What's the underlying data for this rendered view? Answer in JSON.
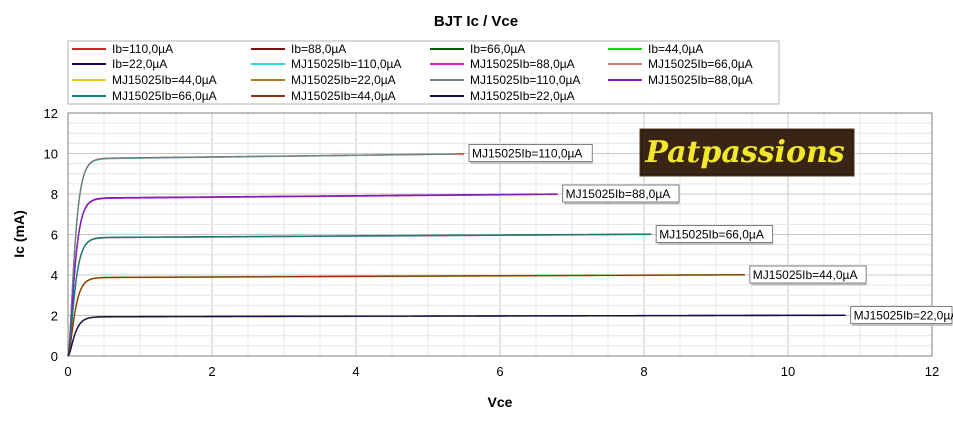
{
  "chart_data": {
    "type": "line",
    "title": "BJT Ic / Vce",
    "xlabel": "Vce",
    "ylabel": "Ic (mA)",
    "xlim": [
      0,
      12
    ],
    "ylim": [
      0,
      12
    ],
    "xticks": [
      "0",
      "2",
      "4",
      "6",
      "8",
      "10",
      "12"
    ],
    "yticks": [
      "0",
      "2",
      "4",
      "6",
      "8",
      "10",
      "12"
    ],
    "grid": true,
    "legend_position": "top",
    "series": [
      {
        "name": "Ib=110,0µA",
        "color": "#d42020",
        "sat": 9.75,
        "end_x": 5.5,
        "end_y": 9.98
      },
      {
        "name": "Ib=88,0µA",
        "color": "#7a1010",
        "sat": 7.8,
        "end_x": 6.8,
        "end_y": 8.0
      },
      {
        "name": "Ib=66,0µA",
        "color": "#0a5a0a",
        "sat": 5.85,
        "end_x": 8.1,
        "end_y": 6.02
      },
      {
        "name": "Ib=44,0µA",
        "color": "#20d020",
        "sat": 3.88,
        "end_x": 9.4,
        "end_y": 4.02
      },
      {
        "name": "Ib=22,0µA",
        "color": "#0a0a60",
        "sat": 1.93,
        "end_x": 10.8,
        "end_y": 2.02
      },
      {
        "name": "MJ15025Ib=110,0µA",
        "color": "#30d8d8",
        "sat": 9.72,
        "end_x": 5.4,
        "end_y": 9.97
      },
      {
        "name": "MJ15025Ib=88,0µA",
        "color": "#d020d0",
        "sat": 7.77,
        "end_x": 6.8,
        "end_y": 7.98
      },
      {
        "name": "MJ15025Ib=66,0µA",
        "color": "#d08080",
        "sat": 5.83,
        "end_x": 8.1,
        "end_y": 6.0
      },
      {
        "name": "MJ15025Ib=44,0µA",
        "color": "#e8d020",
        "sat": 3.86,
        "end_x": 9.4,
        "end_y": 4.0
      },
      {
        "name": "MJ15025Ib=22,0µA",
        "color": "#a88020",
        "sat": 1.92,
        "end_x": 10.8,
        "end_y": 2.0
      },
      {
        "name": "MJ15025Ib=110,0µA",
        "color": "#708080",
        "sat": 9.74,
        "end_x": 5.4,
        "end_y": 9.97
      },
      {
        "name": "MJ15025Ib=88,0µA",
        "color": "#8020c0",
        "sat": 7.79,
        "end_x": 6.8,
        "end_y": 7.99
      },
      {
        "name": "MJ15025Ib=66,0µA",
        "color": "#108080",
        "sat": 5.84,
        "end_x": 8.1,
        "end_y": 6.01
      },
      {
        "name": "MJ15025Ib=44,0µA",
        "color": "#903010",
        "sat": 3.87,
        "end_x": 9.4,
        "end_y": 4.01
      },
      {
        "name": "MJ15025Ib=22,0µA",
        "color": "#101050",
        "sat": 1.94,
        "end_x": 10.8,
        "end_y": 2.01
      }
    ],
    "annotations": [
      {
        "text": "MJ15025Ib=110,0µA",
        "x": 5.5,
        "y": 10.0
      },
      {
        "text": "MJ15025Ib=88,0µA",
        "x": 6.8,
        "y": 8.0
      },
      {
        "text": "MJ15025Ib=66,0µA",
        "x": 8.1,
        "y": 6.0
      },
      {
        "text": "MJ15025Ib=44,0µA",
        "x": 9.4,
        "y": 4.0
      },
      {
        "text": "MJ15025Ib=22,0µA",
        "x": 10.8,
        "y": 2.0
      }
    ]
  },
  "logo": {
    "text": "Patpassions"
  }
}
